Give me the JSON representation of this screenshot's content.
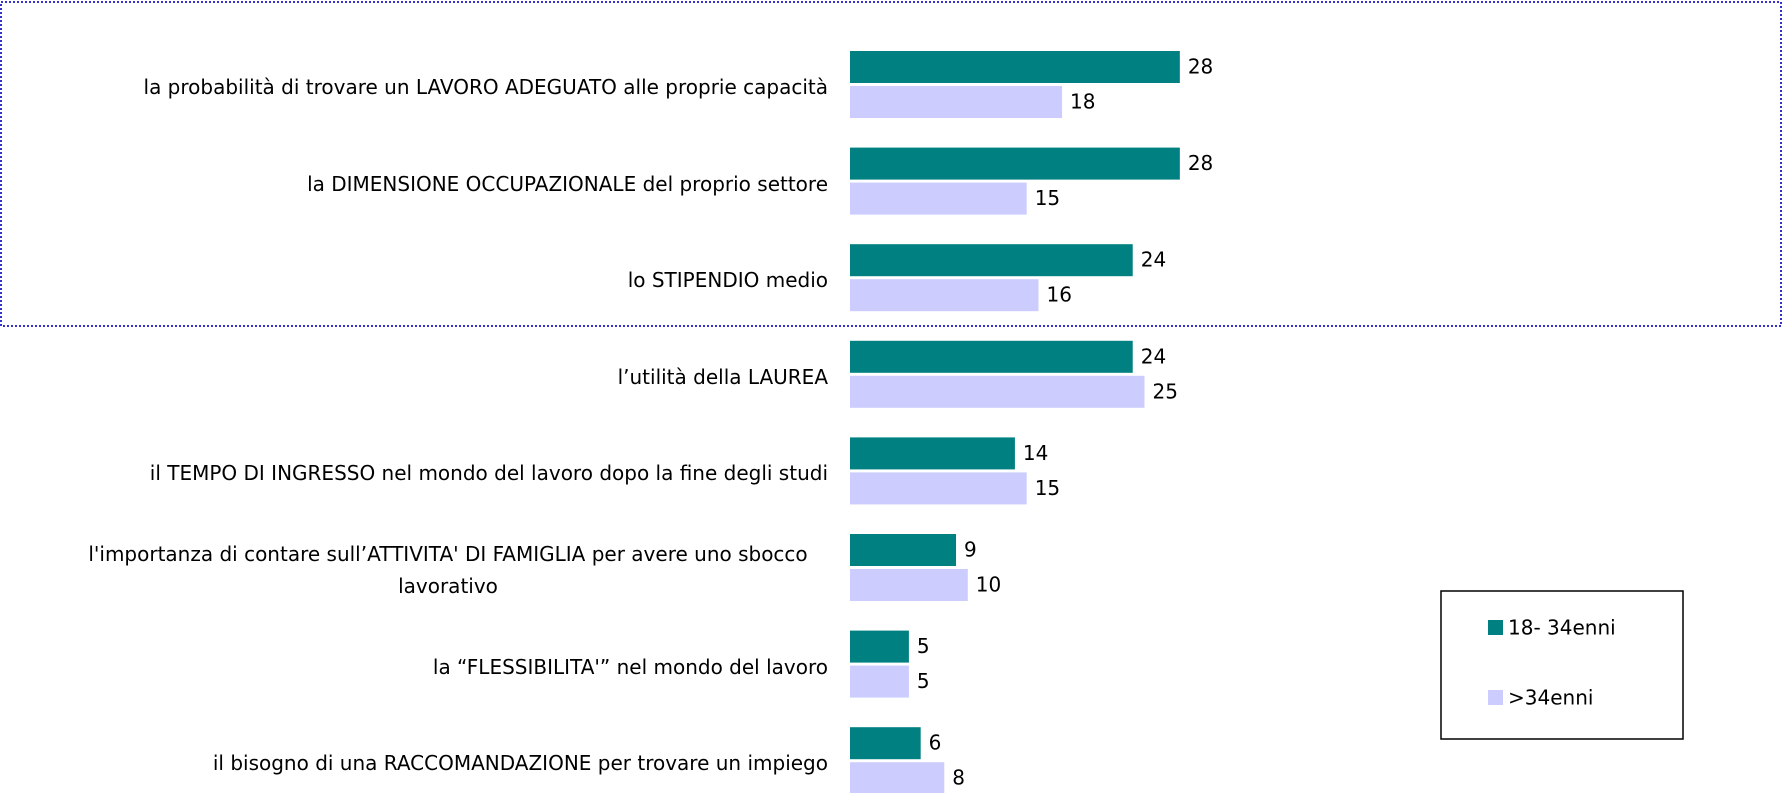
{
  "chart_data": {
    "type": "hbar",
    "categories": [
      "la probabilità di trovare un LAVORO ADEGUATO alle proprie capacità",
      "la DIMENSIONE OCCUPAZIONALE del proprio settore",
      "lo STIPENDIO medio",
      "l’utilità della LAUREA",
      "il TEMPO DI INGRESSO nel mondo del lavoro dopo la fine degli studi",
      "l'importanza di contare sull’ATTIVITA' DI FAMIGLIA per avere uno sbocco lavorativo",
      "la “FLESSIBILITA'” nel mondo del lavoro",
      "il bisogno di una RACCOMANDAZIONE per trovare un impiego"
    ],
    "series": [
      {
        "name": "18- 34enni",
        "color": "#008080",
        "values": [
          28,
          28,
          24,
          24,
          14,
          9,
          5,
          6
        ]
      },
      {
        "name": ">34enni",
        "color": "#ccccff",
        "values": [
          18,
          15,
          16,
          25,
          15,
          10,
          5,
          8
        ]
      }
    ],
    "legend": "right"
  }
}
